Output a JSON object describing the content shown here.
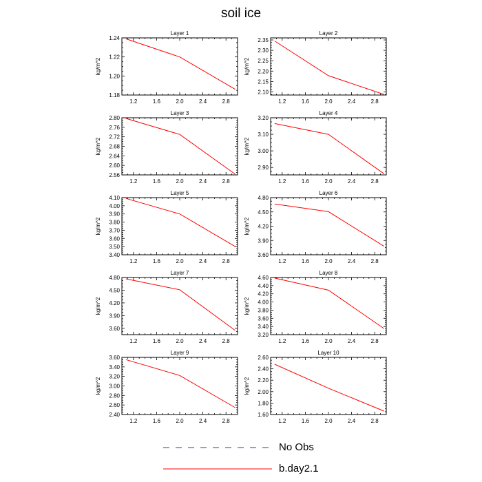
{
  "title": "soil ice",
  "colors": {
    "model": "#ff0000",
    "obs": "#3333aa",
    "axis": "#000000"
  },
  "legend": [
    {
      "label": "No Obs",
      "style": "dashed",
      "color": "#3333aa"
    },
    {
      "label": "b.day2.1",
      "style": "solid",
      "color": "#ff0000"
    }
  ],
  "chart_data": [
    {
      "type": "line",
      "title": "Layer 1",
      "ylabel": "kg/m^2",
      "xlim": [
        1,
        3
      ],
      "xticks": [
        "1.2",
        "1.6",
        "2.0",
        "2.4",
        "2.8"
      ],
      "ylim": [
        1.18,
        1.24
      ],
      "yticks": [
        "1.18",
        "1.20",
        "1.22",
        "1.24"
      ],
      "series": [
        {
          "x": [
            1.07,
            2.0,
            2.96
          ],
          "y": [
            1.239,
            1.22,
            1.186
          ]
        }
      ]
    },
    {
      "type": "line",
      "title": "Layer 2",
      "ylabel": "kg/m^2",
      "xlim": [
        1,
        3
      ],
      "xticks": [
        "1.2",
        "1.6",
        "2.0",
        "2.4",
        "2.8"
      ],
      "ylim": [
        2.085,
        2.36
      ],
      "yticks": [
        "2.10",
        "2.15",
        "2.20",
        "2.25",
        "2.30",
        "2.35"
      ],
      "series": [
        {
          "x": [
            1.07,
            2.0,
            2.96
          ],
          "y": [
            2.345,
            2.178,
            2.088
          ]
        }
      ]
    },
    {
      "type": "line",
      "title": "Layer 3",
      "ylabel": "kg/m^2",
      "xlim": [
        1,
        3
      ],
      "xticks": [
        "1.2",
        "1.6",
        "2.0",
        "2.4",
        "2.8"
      ],
      "ylim": [
        2.56,
        2.8
      ],
      "yticks": [
        "2.56",
        "2.60",
        "2.64",
        "2.68",
        "2.72",
        "2.76",
        "2.80"
      ],
      "series": [
        {
          "x": [
            1.07,
            2.0,
            2.96
          ],
          "y": [
            2.797,
            2.73,
            2.563
          ]
        }
      ]
    },
    {
      "type": "line",
      "title": "Layer 4",
      "ylabel": "kg/m^2",
      "xlim": [
        1,
        3
      ],
      "xticks": [
        "1.2",
        "1.6",
        "2.0",
        "2.4",
        "2.8"
      ],
      "ylim": [
        2.855,
        3.2
      ],
      "yticks": [
        "2.90",
        "3.00",
        "3.10",
        "3.20"
      ],
      "series": [
        {
          "x": [
            1.07,
            2.0,
            2.96
          ],
          "y": [
            3.165,
            3.1,
            2.862
          ]
        }
      ]
    },
    {
      "type": "line",
      "title": "Layer 5",
      "ylabel": "kg/m^2",
      "xlim": [
        1,
        3
      ],
      "xticks": [
        "1.2",
        "1.6",
        "2.0",
        "2.4",
        "2.8"
      ],
      "ylim": [
        3.4,
        4.1
      ],
      "yticks": [
        "3.40",
        "3.50",
        "3.60",
        "3.70",
        "3.80",
        "3.90",
        "4.00",
        "4.10"
      ],
      "series": [
        {
          "x": [
            1.07,
            2.0,
            2.96
          ],
          "y": [
            4.09,
            3.9,
            3.5
          ]
        }
      ]
    },
    {
      "type": "line",
      "title": "Layer 6",
      "ylabel": "kg/m^2",
      "xlim": [
        1,
        3
      ],
      "xticks": [
        "1.2",
        "1.6",
        "2.0",
        "2.4",
        "2.8"
      ],
      "ylim": [
        3.6,
        4.8
      ],
      "yticks": [
        "3.60",
        "3.90",
        "4.20",
        "4.50",
        "4.80"
      ],
      "series": [
        {
          "x": [
            1.07,
            2.0,
            2.96
          ],
          "y": [
            4.665,
            4.505,
            3.78
          ]
        }
      ]
    },
    {
      "type": "line",
      "title": "Layer 7",
      "ylabel": "kg/m^2",
      "xlim": [
        1,
        3
      ],
      "xticks": [
        "1.2",
        "1.6",
        "2.0",
        "2.4",
        "2.8"
      ],
      "ylim": [
        3.45,
        4.8
      ],
      "yticks": [
        "3.60",
        "3.90",
        "4.20",
        "4.50",
        "4.80"
      ],
      "series": [
        {
          "x": [
            1.07,
            2.0,
            2.96
          ],
          "y": [
            4.768,
            4.51,
            3.55
          ]
        }
      ]
    },
    {
      "type": "line",
      "title": "Layer 8",
      "ylabel": "kg/m^2",
      "xlim": [
        1,
        3
      ],
      "xticks": [
        "1.2",
        "1.6",
        "2.0",
        "2.4",
        "2.8"
      ],
      "ylim": [
        3.2,
        4.6
      ],
      "yticks": [
        "3.20",
        "3.40",
        "3.60",
        "3.80",
        "4.00",
        "4.20",
        "4.40",
        "4.60"
      ],
      "series": [
        {
          "x": [
            1.07,
            2.0,
            2.96
          ],
          "y": [
            4.585,
            4.29,
            3.35
          ]
        }
      ]
    },
    {
      "type": "line",
      "title": "Layer 9",
      "ylabel": "kg/m^2",
      "xlim": [
        1,
        3
      ],
      "xticks": [
        "1.2",
        "1.6",
        "2.0",
        "2.4",
        "2.8"
      ],
      "ylim": [
        2.4,
        3.6
      ],
      "yticks": [
        "2.40",
        "2.60",
        "2.80",
        "3.00",
        "3.20",
        "3.40",
        "3.60"
      ],
      "series": [
        {
          "x": [
            1.07,
            2.0,
            2.96
          ],
          "y": [
            3.553,
            3.22,
            2.545
          ]
        }
      ]
    },
    {
      "type": "line",
      "title": "Layer 10",
      "ylabel": "kg/m^2",
      "xlim": [
        1,
        3
      ],
      "xticks": [
        "1.2",
        "1.6",
        "2.0",
        "2.4",
        "2.8"
      ],
      "ylim": [
        1.6,
        2.6
      ],
      "yticks": [
        "1.60",
        "1.80",
        "2.00",
        "2.20",
        "2.40",
        "2.60"
      ],
      "series": [
        {
          "x": [
            1.07,
            2.0,
            2.96
          ],
          "y": [
            2.48,
            2.06,
            1.66
          ]
        }
      ]
    }
  ]
}
